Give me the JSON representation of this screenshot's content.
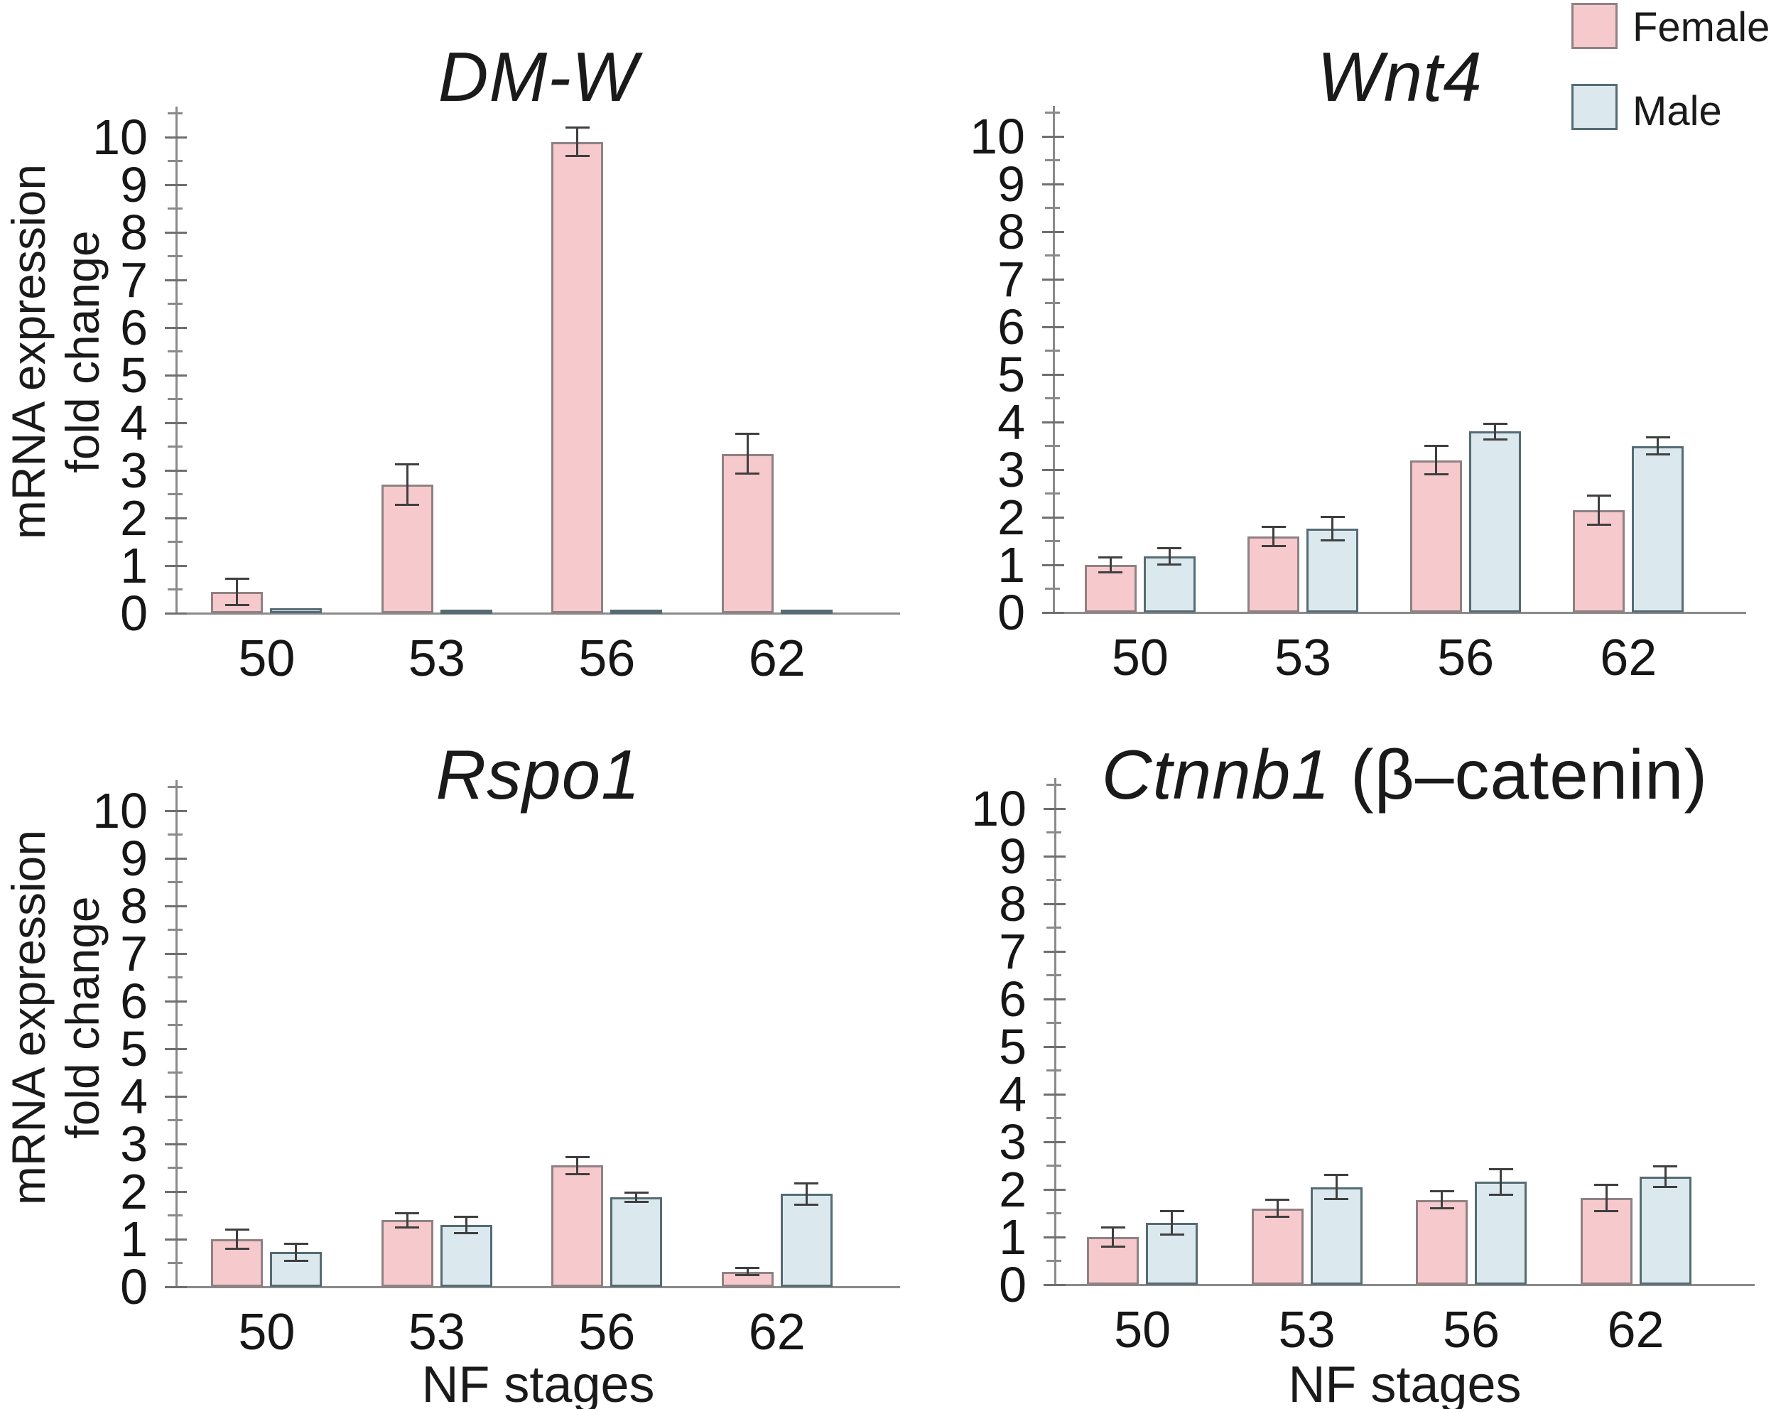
{
  "figure": {
    "y_axis_label_line1": "mRNA expression",
    "y_axis_label_line2": "fold change",
    "x_axis_label": "NF stages"
  },
  "legend": {
    "items": [
      {
        "label": "Female",
        "color": "#f6c9cc",
        "border": "#8f8183"
      },
      {
        "label": "Male",
        "color": "#dbe9ee",
        "border": "#566b74"
      }
    ]
  },
  "colors": {
    "axis": "#8a8a8a",
    "tick": "#6f6f6f",
    "error_bar": "#3f3f3f",
    "text": "#1a1a1a",
    "background": "#ffffff"
  },
  "chart_data": [
    {
      "type": "bar",
      "title": "DM-W",
      "title_suffix": "",
      "categories": [
        "50",
        "53",
        "56",
        "62"
      ],
      "yticks": [
        0,
        1,
        2,
        3,
        4,
        5,
        6,
        7,
        8,
        9,
        10
      ],
      "ylim": [
        0,
        10.5
      ],
      "ylabel": "mRNA expression fold change",
      "xlabel": "",
      "legend_position": "top-right-of-figure",
      "grid": false,
      "series": [
        {
          "name": "Female",
          "values": [
            0.45,
            2.7,
            9.9,
            3.35
          ],
          "errors": [
            0.28,
            0.43,
            0.3,
            0.42
          ]
        },
        {
          "name": "Male",
          "values": [
            0.1,
            0.08,
            0.08,
            0.05
          ],
          "errors": [
            0,
            0,
            0,
            0
          ]
        }
      ]
    },
    {
      "type": "bar",
      "title": "Wnt4",
      "title_suffix": "",
      "categories": [
        "50",
        "53",
        "56",
        "62"
      ],
      "yticks": [
        0,
        1,
        2,
        3,
        4,
        5,
        6,
        7,
        8,
        9,
        10
      ],
      "ylim": [
        0,
        10.5
      ],
      "ylabel": "",
      "xlabel": "",
      "grid": false,
      "series": [
        {
          "name": "Female",
          "values": [
            1.0,
            1.6,
            3.2,
            2.15
          ],
          "errors": [
            0.15,
            0.2,
            0.3,
            0.3
          ]
        },
        {
          "name": "Male",
          "values": [
            1.18,
            1.76,
            3.8,
            3.5
          ],
          "errors": [
            0.17,
            0.25,
            0.16,
            0.18
          ]
        }
      ]
    },
    {
      "type": "bar",
      "title": "Rspo1",
      "title_suffix": "",
      "categories": [
        "50",
        "53",
        "56",
        "62"
      ],
      "yticks": [
        0,
        1,
        2,
        3,
        4,
        5,
        6,
        7,
        8,
        9,
        10
      ],
      "ylim": [
        0,
        10.5
      ],
      "ylabel": "mRNA expression fold change",
      "xlabel": "NF stages",
      "grid": false,
      "series": [
        {
          "name": "Female",
          "values": [
            1.0,
            1.4,
            2.55,
            0.32
          ],
          "errors": [
            0.2,
            0.15,
            0.18,
            0.08
          ]
        },
        {
          "name": "Male",
          "values": [
            0.73,
            1.3,
            1.88,
            1.95
          ],
          "errors": [
            0.18,
            0.17,
            0.1,
            0.22
          ]
        }
      ]
    },
    {
      "type": "bar",
      "title": "Ctnnb1",
      "title_suffix": " (β–catenin)",
      "categories": [
        "50",
        "53",
        "56",
        "62"
      ],
      "yticks": [
        0,
        1,
        2,
        3,
        4,
        5,
        6,
        7,
        8,
        9,
        10
      ],
      "ylim": [
        0,
        10.5
      ],
      "ylabel": "",
      "xlabel": "NF stages",
      "grid": false,
      "series": [
        {
          "name": "Female",
          "values": [
            1.0,
            1.6,
            1.78,
            1.82
          ],
          "errors": [
            0.2,
            0.18,
            0.18,
            0.27
          ]
        },
        {
          "name": "Male",
          "values": [
            1.3,
            2.05,
            2.16,
            2.27
          ],
          "errors": [
            0.25,
            0.25,
            0.27,
            0.22
          ]
        }
      ]
    }
  ]
}
